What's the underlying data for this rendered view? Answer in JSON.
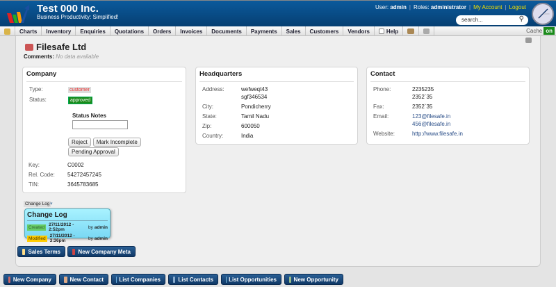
{
  "header": {
    "title": "Test 000 Inc.",
    "tagline": "Business Productivity: Simplified!",
    "user_label": "User:",
    "user": "admin",
    "roles_label": "Roles:",
    "roles": "administrator",
    "my_account": "My Account",
    "logout": "Logout",
    "search_placeholder": "search..."
  },
  "nav": {
    "items": [
      "Charts",
      "Inventory",
      "Enquiries",
      "Quotations",
      "Orders",
      "Invoices",
      "Documents",
      "Payments",
      "Sales",
      "Customers",
      "Vendors"
    ],
    "help": "Help",
    "cache_label": "Cache",
    "cache_state": "on"
  },
  "page": {
    "title": "Filesafe Ltd",
    "comments_label": "Comments:",
    "comments_value": "No data available"
  },
  "company": {
    "heading": "Company",
    "type_label": "Type:",
    "type": "customer",
    "status_label": "Status:",
    "status": "approved",
    "status_notes_label": "Status Notes",
    "reject": "Reject",
    "mark_incomplete": "Mark Incomplete",
    "pending_approval": "Pending Approval",
    "key_label": "Key:",
    "key": "C0002",
    "rel_label": "Rel. Code:",
    "rel": "54272457245",
    "tin_label": "TIN:",
    "tin": "3645783685"
  },
  "hq": {
    "heading": "Headquarters",
    "address_label": "Address:",
    "address1": "wefweqt43",
    "address2": "sgf346534",
    "city_label": "City:",
    "city": "Pondicherry",
    "state_label": "State:",
    "state": "Tamil Nadu",
    "zip_label": "Zip:",
    "zip": "600050",
    "country_label": "Country:",
    "country": "India"
  },
  "contact": {
    "heading": "Contact",
    "phone_label": "Phone:",
    "phone1": "2235235",
    "phone2": "2352`35",
    "fax_label": "Fax:",
    "fax": "2352`35",
    "email_label": "Email:",
    "email1": "123@filesafe.in",
    "email2": "456@filesafe.in",
    "website_label": "Website:",
    "website": "http://www.filesafe.in"
  },
  "changelog": {
    "tab": "Change Log",
    "heading": "Change Log",
    "created_label": "Created",
    "created": "27/11/2012 - 2:52pm",
    "created_by": "admin",
    "modified_label": "Modified",
    "modified": "27/11/2012 - 3:36pm",
    "modified_by": "admin",
    "by": "by"
  },
  "actions": {
    "sales_terms": "Sales Terms",
    "new_company_meta": "New Company Meta"
  },
  "footer": {
    "buttons": [
      "New Company",
      "New Contact",
      "List Companies",
      "List Contacts",
      "List Opportunities",
      "New Opportunity"
    ]
  },
  "colors": {
    "header": "#0b5a9c",
    "approved": "#1a8a1a",
    "link_yellow": "#f4e000",
    "changelog": "#a8f2ff"
  }
}
